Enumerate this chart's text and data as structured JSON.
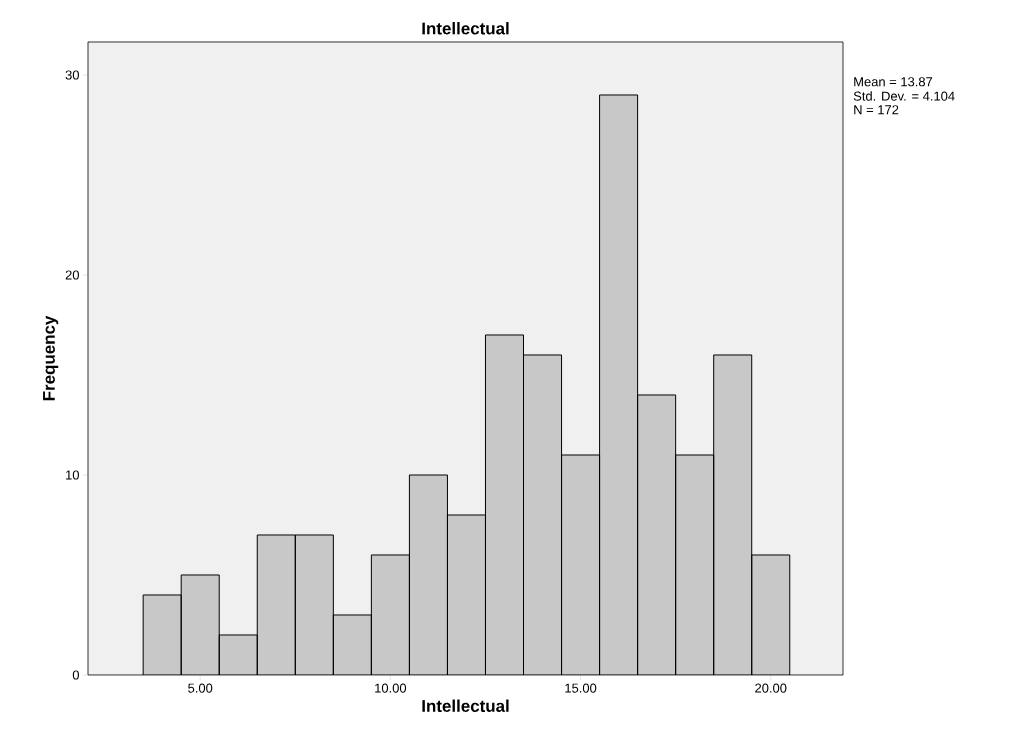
{
  "chart_data": {
    "type": "histogram",
    "title": "Intellectual",
    "xlabel": "Intellectual",
    "ylabel": "Frequency",
    "bins": [
      3.5,
      4.5,
      5.5,
      6.5,
      7.5,
      8.5,
      9.5,
      10.5,
      11.5,
      12.5,
      13.5,
      14.5,
      15.5,
      16.5,
      17.5,
      18.5,
      19.5,
      20.5
    ],
    "values": [
      4,
      5,
      2,
      7,
      7,
      3,
      6,
      10,
      8,
      17,
      16,
      11,
      29,
      14,
      11,
      16,
      6
    ],
    "color": "#c8c8c8",
    "xlim": [
      2.05,
      21.9
    ],
    "ylim": [
      0,
      31.65
    ],
    "xticks": [
      {
        "value": 5,
        "label": "5.00"
      },
      {
        "value": 10,
        "label": "10.00"
      },
      {
        "value": 15,
        "label": "15.00"
      },
      {
        "value": 20,
        "label": "20.00"
      }
    ],
    "yticks": [
      0,
      10,
      20,
      30
    ],
    "annotations": [
      "Mean = 13.87",
      "Std. Dev. = 4.104",
      "N = 172"
    ]
  }
}
